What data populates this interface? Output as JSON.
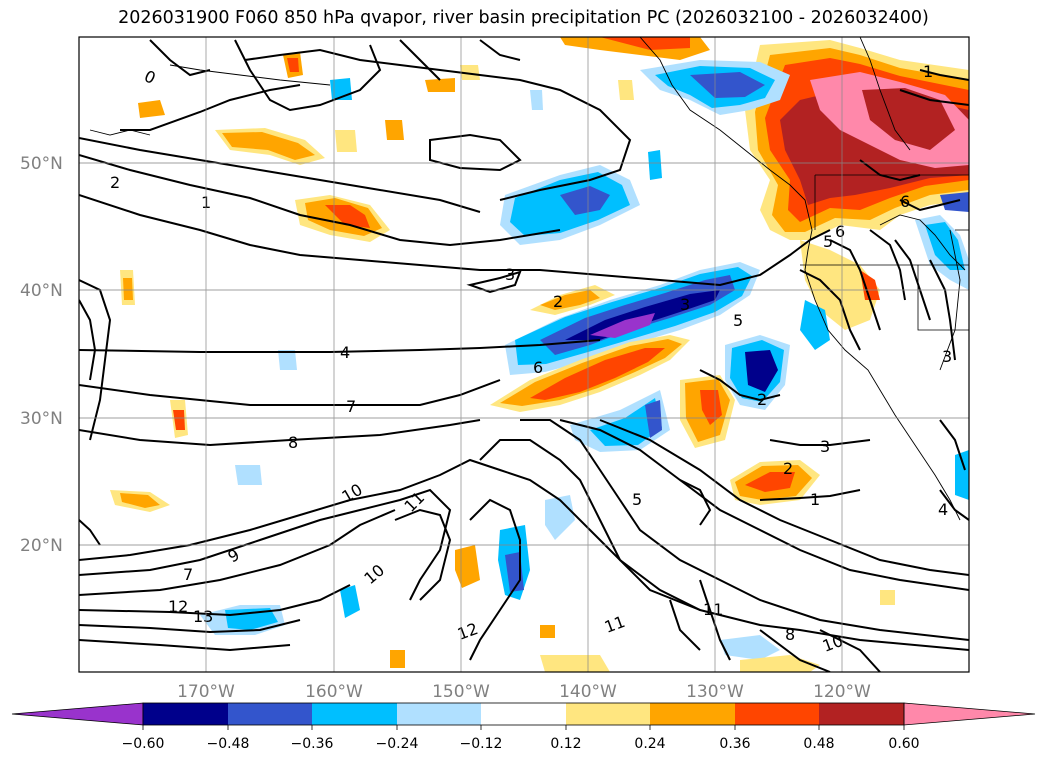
{
  "title": "2026031900 F060 850 hPa qvapor, river basin precipitation PC (2026032100 - 2026032400)",
  "map": {
    "lat_labels": [
      "50°N",
      "40°N",
      "30°N",
      "20°N"
    ],
    "lon_labels": [
      "170°W",
      "160°W",
      "150°W",
      "140°W",
      "130°W",
      "120°W"
    ],
    "contour_labels": [
      "0",
      "2",
      "1",
      "3",
      "4",
      "7",
      "8",
      "6",
      "2",
      "5",
      "10",
      "11",
      "9",
      "10",
      "7",
      "12",
      "13",
      "5",
      "3",
      "2",
      "1",
      "2",
      "3",
      "11",
      "11",
      "12",
      "8",
      "10",
      "1",
      "5",
      "6",
      "3",
      "4",
      "6"
    ]
  },
  "colorbar": {
    "colors": [
      "#9933cc",
      "#00008b",
      "#3355cc",
      "#00bfff",
      "#b0e0ff",
      "#ffffff",
      "#ffe680",
      "#ffa500",
      "#ff4500",
      "#b22222",
      "#ff88aa"
    ],
    "tick_labels": [
      "−0.60",
      "−0.48",
      "−0.36",
      "−0.24",
      "−0.12",
      "0.12",
      "0.24",
      "0.36",
      "0.48",
      "0.60"
    ]
  }
}
